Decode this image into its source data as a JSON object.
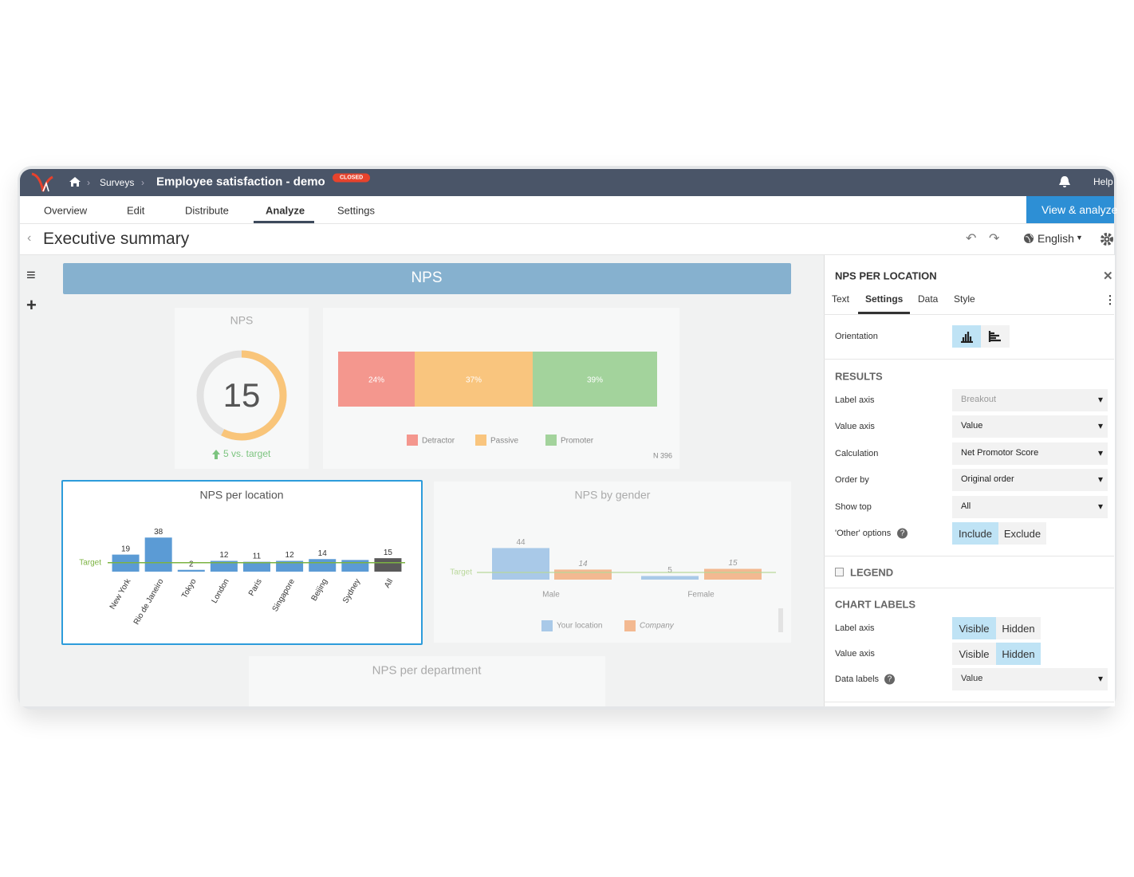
{
  "header": {
    "breadcrumb": "Surveys",
    "title": "Employee satisfaction - demo",
    "status": "CLOSED",
    "help": "Help"
  },
  "tabs": [
    "Overview",
    "Edit",
    "Distribute",
    "Analyze",
    "Settings"
  ],
  "view_button": "View & analyze",
  "page_title": "Executive summary",
  "language": "English",
  "banner": "NPS",
  "chart_data": [
    {
      "type": "gauge",
      "title": "NPS",
      "value": 15,
      "range": [
        -100,
        100
      ],
      "color": "#f9c57a",
      "track_color": "#e2e2e2",
      "note": "5 vs. target"
    },
    {
      "type": "stacked_bar",
      "xlim": [
        0,
        100
      ],
      "n_label": "N 396",
      "series": [
        {
          "name": "Detractor",
          "color": "#f4978e",
          "values": [
            24
          ],
          "value_labels": [
            "24%"
          ]
        },
        {
          "name": "Passive",
          "color": "#f9c57e",
          "values": [
            37
          ],
          "value_labels": [
            "37%"
          ]
        },
        {
          "name": "Promoter",
          "color": "#a3d39c",
          "values": [
            39
          ],
          "value_labels": [
            "39%"
          ]
        }
      ]
    },
    {
      "type": "bar",
      "title": "NPS per location",
      "categories": [
        "New York",
        "Rio de Janeiro",
        "Tokyo",
        "London",
        "Paris",
        "Singapore",
        "Beijing",
        "Sydney",
        "All"
      ],
      "values": [
        19,
        38,
        2,
        12,
        11,
        12,
        14,
        13,
        15
      ],
      "value_labels": [
        "19",
        "38",
        "2",
        "12",
        "11",
        "12",
        "14",
        null,
        "15"
      ],
      "colors": [
        "#5b9bd5",
        "#5b9bd5",
        "#5b9bd5",
        "#5b9bd5",
        "#5b9bd5",
        "#5b9bd5",
        "#5b9bd5",
        "#5b9bd5",
        "#5a5a5a"
      ],
      "ylim": [
        0,
        40
      ],
      "target": 10,
      "target_label": "Target",
      "target_color": "#7cb342"
    },
    {
      "type": "grouped_bar",
      "title": "NPS by gender",
      "categories": [
        "Male",
        "Female"
      ],
      "ylim": [
        0,
        50
      ],
      "target": 10,
      "target_label": "Target",
      "target_color": "#b9d79a",
      "series": [
        {
          "name": "Your location",
          "color": "#a9c9e8",
          "values": [
            44,
            5
          ]
        },
        {
          "name": "Company",
          "color": "#f3b991",
          "values": [
            14,
            15
          ]
        }
      ]
    },
    {
      "type": "empty",
      "title": "NPS per department"
    }
  ],
  "panel": {
    "title": "NPS PER LOCATION",
    "tabs": [
      "Text",
      "Settings",
      "Data",
      "Style"
    ],
    "orientation": "Orientation",
    "results": {
      "heading": "RESULTS",
      "rows": [
        [
          "Label axis",
          "Breakout"
        ],
        [
          "Value axis",
          "Value"
        ],
        [
          "Calculation",
          "Net Promotor Score"
        ],
        [
          "Order by",
          "Original order"
        ],
        [
          "Show top",
          "All"
        ]
      ],
      "other": {
        "label": "'Other' options",
        "options": [
          "Include",
          "Exclude"
        ]
      }
    },
    "legend": "LEGEND",
    "chart_labels": {
      "heading": "CHART LABELS",
      "label_axis": {
        "label": "Label axis",
        "options": [
          "Visible",
          "Hidden"
        ]
      },
      "value_axis": {
        "label": "Value axis",
        "options": [
          "Visible",
          "Hidden"
        ]
      },
      "data_labels": {
        "label": "Data labels",
        "value": "Value"
      }
    }
  }
}
